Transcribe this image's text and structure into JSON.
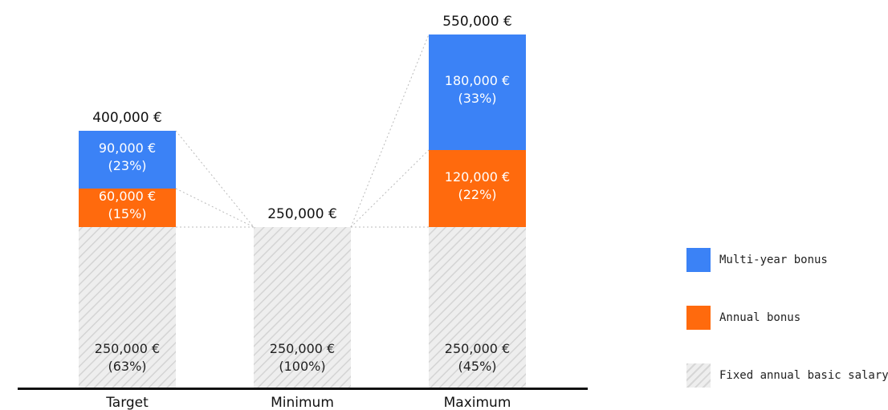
{
  "chart_data": {
    "type": "bar",
    "stacked": true,
    "categories": [
      "Target",
      "Minimum",
      "Maximum"
    ],
    "totals": [
      "400,000 €",
      "250,000 €",
      "550,000 €"
    ],
    "total_values": [
      400000,
      250000,
      550000
    ],
    "series": [
      {
        "name": "Fixed annual basic salary",
        "color": "#e6e6e6",
        "pattern": "hatched",
        "values": [
          250000,
          250000,
          250000
        ],
        "labels": [
          [
            "250,000 €",
            "(63%)"
          ],
          [
            "250,000 €",
            "(100%)"
          ],
          [
            "250,000 €",
            "(45%)"
          ]
        ]
      },
      {
        "name": "Annual bonus",
        "color": "#ff6a0d",
        "values": [
          60000,
          0,
          120000
        ],
        "labels": [
          [
            "60,000 €",
            "(15%)"
          ],
          null,
          [
            "120,000 €",
            "(22%)"
          ]
        ]
      },
      {
        "name": "Multi-year bonus",
        "color": "#3b82f6",
        "values": [
          90000,
          0,
          180000
        ],
        "labels": [
          [
            "90,000 €",
            "(23%)"
          ],
          null,
          [
            "180,000 €",
            "(33%)"
          ]
        ]
      }
    ],
    "ylim": [
      0,
      550000
    ],
    "grid": false,
    "connector_lines": "dotted",
    "legend_position": "right",
    "legend": [
      {
        "label": "Multi-year bonus",
        "color": "#3b82f6"
      },
      {
        "label": "Annual bonus",
        "color": "#ff6a0d"
      },
      {
        "label": "Fixed annual basic salary",
        "color": "#e6e6e6",
        "pattern": "hatched"
      }
    ]
  }
}
